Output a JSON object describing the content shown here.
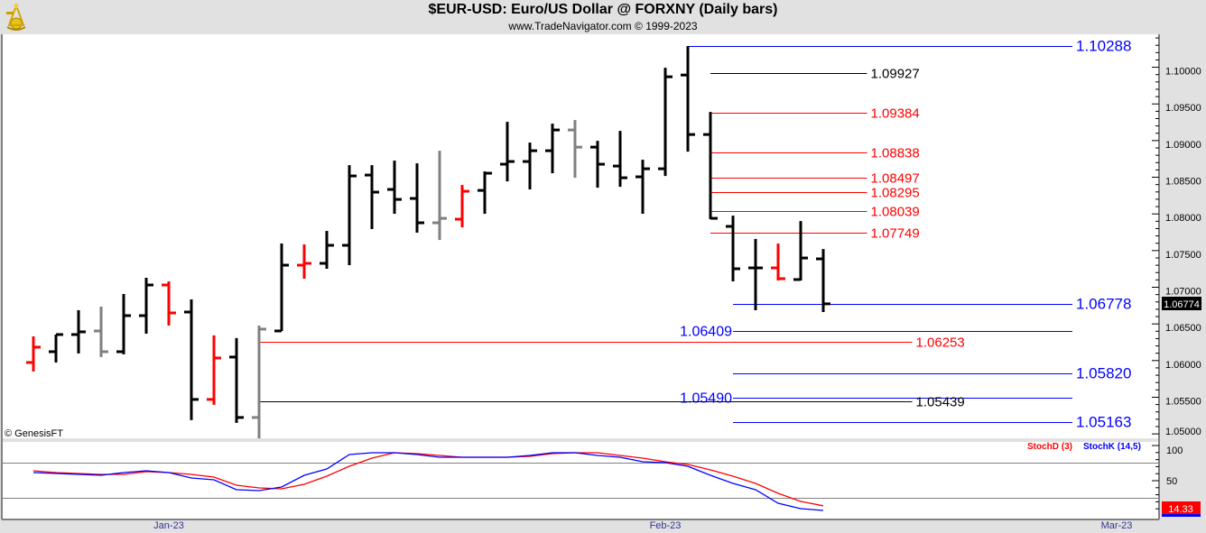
{
  "header": {
    "title": "$EUR-USD:  Euro/US Dollar @ FORXNY  (Daily bars)",
    "subtitle": "www.TradeNavigator.com © 1999-2023",
    "logo": "sextant-logo"
  },
  "copyright": "© GenesisFT",
  "colors": {
    "black": "#000000",
    "red": "#ff0000",
    "gray": "#808080",
    "blue": "#0000ff",
    "panel": "#ffffff",
    "background": "#e1e1e1"
  },
  "chart_data": [
    {
      "type": "ohlc",
      "title": "$EUR-USD:  Euro/US Dollar @ FORXNY  (Daily bars)",
      "ylim": [
        1.0494,
        1.1045
      ],
      "y_ticks": [
        "1.10000",
        "1.09500",
        "1.09000",
        "1.08500",
        "1.08000",
        "1.07500",
        "1.07000",
        "1.06500",
        "1.06000",
        "1.05500",
        "1.05000"
      ],
      "x_ticks": [
        {
          "label": "Jan-23",
          "bar": 6
        },
        {
          "label": "Feb-23",
          "bar": 28
        },
        {
          "label": "Mar-23",
          "bar": 48
        }
      ],
      "last_price": "1.06774",
      "bars": [
        {
          "o": 1.05974,
          "h": 1.0633,
          "l": 1.05851,
          "c": 1.06183,
          "color": "red"
        },
        {
          "o": 1.06121,
          "h": 1.06355,
          "l": 1.05974,
          "c": 1.06355,
          "color": "black"
        },
        {
          "o": 1.06355,
          "h": 1.06687,
          "l": 1.06097,
          "c": 1.06392,
          "color": "black"
        },
        {
          "o": 1.06404,
          "h": 1.06736,
          "l": 1.06048,
          "c": 1.06121,
          "color": "gray"
        },
        {
          "o": 1.06121,
          "h": 1.06908,
          "l": 1.06085,
          "c": 1.06613,
          "color": "black"
        },
        {
          "o": 1.06613,
          "h": 1.07129,
          "l": 1.06367,
          "c": 1.07031,
          "color": "black"
        },
        {
          "o": 1.07031,
          "h": 1.0708,
          "l": 1.06478,
          "c": 1.0665,
          "color": "red"
        },
        {
          "o": 1.06662,
          "h": 1.06834,
          "l": 1.05187,
          "c": 1.0547,
          "color": "black"
        },
        {
          "o": 1.0547,
          "h": 1.06343,
          "l": 1.05396,
          "c": 1.06035,
          "color": "red"
        },
        {
          "o": 1.06048,
          "h": 1.06306,
          "l": 1.05151,
          "c": 1.05224,
          "color": "black"
        },
        {
          "o": 1.05224,
          "h": 1.06478,
          "l": 1.0483,
          "c": 1.06429,
          "color": "gray"
        },
        {
          "o": 1.06404,
          "h": 1.07596,
          "l": 1.06404,
          "c": 1.07301,
          "color": "black"
        },
        {
          "o": 1.07301,
          "h": 1.07584,
          "l": 1.07117,
          "c": 1.07326,
          "color": "red"
        },
        {
          "o": 1.07326,
          "h": 1.07768,
          "l": 1.07252,
          "c": 1.07572,
          "color": "black"
        },
        {
          "o": 1.07572,
          "h": 1.08665,
          "l": 1.07301,
          "c": 1.08518,
          "color": "black"
        },
        {
          "o": 1.0853,
          "h": 1.08665,
          "l": 1.07793,
          "c": 1.08297,
          "color": "black"
        },
        {
          "o": 1.08334,
          "h": 1.08727,
          "l": 1.08002,
          "c": 1.08198,
          "color": "black"
        },
        {
          "o": 1.08211,
          "h": 1.0869,
          "l": 1.07744,
          "c": 1.07879,
          "color": "black"
        },
        {
          "o": 1.07879,
          "h": 1.08862,
          "l": 1.07645,
          "c": 1.0794,
          "color": "gray"
        },
        {
          "o": 1.07928,
          "h": 1.08395,
          "l": 1.07817,
          "c": 1.08309,
          "color": "red"
        },
        {
          "o": 1.08321,
          "h": 1.08579,
          "l": 1.08002,
          "c": 1.08555,
          "color": "black"
        },
        {
          "o": 1.08678,
          "h": 1.09255,
          "l": 1.08444,
          "c": 1.08715,
          "color": "black"
        },
        {
          "o": 1.08715,
          "h": 1.08973,
          "l": 1.08334,
          "c": 1.08862,
          "color": "black"
        },
        {
          "o": 1.08862,
          "h": 1.09231,
          "l": 1.08555,
          "c": 1.09145,
          "color": "black"
        },
        {
          "o": 1.09145,
          "h": 1.0928,
          "l": 1.08493,
          "c": 1.08911,
          "color": "gray"
        },
        {
          "o": 1.08911,
          "h": 1.08997,
          "l": 1.08358,
          "c": 1.08678,
          "color": "black"
        },
        {
          "o": 1.08653,
          "h": 1.09132,
          "l": 1.0837,
          "c": 1.08493,
          "color": "black"
        },
        {
          "o": 1.08506,
          "h": 1.08739,
          "l": 1.08002,
          "c": 1.08616,
          "color": "black"
        },
        {
          "o": 1.08616,
          "h": 1.09993,
          "l": 1.08518,
          "c": 1.0987,
          "color": "black"
        },
        {
          "o": 1.09894,
          "h": 1.10288,
          "l": 1.0885,
          "c": 1.09083,
          "color": "black"
        },
        {
          "o": 1.09083,
          "h": 1.0939,
          "l": 1.07928,
          "c": 1.0794,
          "color": "black"
        },
        {
          "o": 1.0783,
          "h": 1.07977,
          "l": 1.0708,
          "c": 1.07252,
          "color": "black"
        },
        {
          "o": 1.07264,
          "h": 1.07658,
          "l": 1.06687,
          "c": 1.07264,
          "color": "black"
        },
        {
          "o": 1.07264,
          "h": 1.07596,
          "l": 1.07092,
          "c": 1.07117,
          "color": "red"
        },
        {
          "o": 1.07105,
          "h": 1.07903,
          "l": 1.07092,
          "c": 1.07399,
          "color": "black"
        },
        {
          "o": 1.07387,
          "h": 1.07522,
          "l": 1.06662,
          "c": 1.06774,
          "color": "black"
        }
      ],
      "levels": [
        {
          "label": "1.10288",
          "value": 1.10288,
          "color": "blue",
          "side": "right"
        },
        {
          "label": "1.09927",
          "value": 1.09927,
          "color": "black",
          "side": "right"
        },
        {
          "label": "1.09384",
          "value": 1.09384,
          "color": "red",
          "side": "right"
        },
        {
          "label": "1.08838",
          "value": 1.08838,
          "color": "red",
          "side": "right"
        },
        {
          "label": "1.08497",
          "value": 1.08497,
          "color": "red",
          "side": "right"
        },
        {
          "label": "1.08295",
          "value": 1.08295,
          "color": "red",
          "side": "right"
        },
        {
          "label": "1.08039",
          "value": 1.08039,
          "color": "red",
          "side": "right"
        },
        {
          "label": "1.07749",
          "value": 1.07749,
          "color": "red",
          "side": "right"
        },
        {
          "label": "1.06778",
          "value": 1.06778,
          "color": "blue",
          "side": "right"
        },
        {
          "label": "1.06409",
          "value": 1.06409,
          "color": "blue",
          "side": "left"
        },
        {
          "label": "1.06253",
          "value": 1.06253,
          "color": "red",
          "side": "right"
        },
        {
          "label": "1.05820",
          "value": 1.0582,
          "color": "blue",
          "side": "right"
        },
        {
          "label": "1.05490",
          "value": 1.0549,
          "color": "blue",
          "side": "left"
        },
        {
          "label": "1.05439",
          "value": 1.05439,
          "color": "black",
          "side": "right"
        },
        {
          "label": "1.05163",
          "value": 1.05163,
          "color": "blue",
          "side": "right"
        }
      ]
    },
    {
      "type": "line",
      "ylim": [
        0,
        100
      ],
      "y_ticks": [
        "100",
        "50"
      ],
      "reference_lines": [
        75,
        25
      ],
      "last_value": "14.33",
      "series": [
        {
          "name": "StochD (3)",
          "color": "red",
          "values": [
            64.1,
            61.5,
            60.3,
            59.0,
            59.0,
            62.8,
            61.5,
            59.0,
            55.1,
            43.6,
            39.7,
            38.5,
            44.9,
            56.4,
            70.5,
            82.1,
            89.7,
            88.5,
            85.9,
            83.3,
            83.3,
            83.3,
            84.6,
            88.5,
            89.7,
            89.7,
            85.9,
            82.1,
            76.9,
            73.1,
            65.4,
            56.4,
            46.2,
            32.1,
            20.5,
            14.33
          ]
        },
        {
          "name": "StochK (14,5)",
          "color": "blue",
          "values": [
            61.5,
            60.3,
            59.0,
            57.7,
            61.5,
            64.1,
            61.5,
            53.8,
            51.3,
            37.2,
            35.9,
            41.0,
            57.7,
            66.7,
            87.2,
            89.7,
            89.7,
            87.2,
            83.3,
            83.3,
            83.3,
            83.3,
            85.9,
            89.7,
            89.7,
            85.9,
            83.3,
            76.9,
            75.6,
            70.5,
            57.7,
            46.2,
            37.2,
            17.9,
            10.3,
            7.7
          ]
        }
      ]
    }
  ]
}
